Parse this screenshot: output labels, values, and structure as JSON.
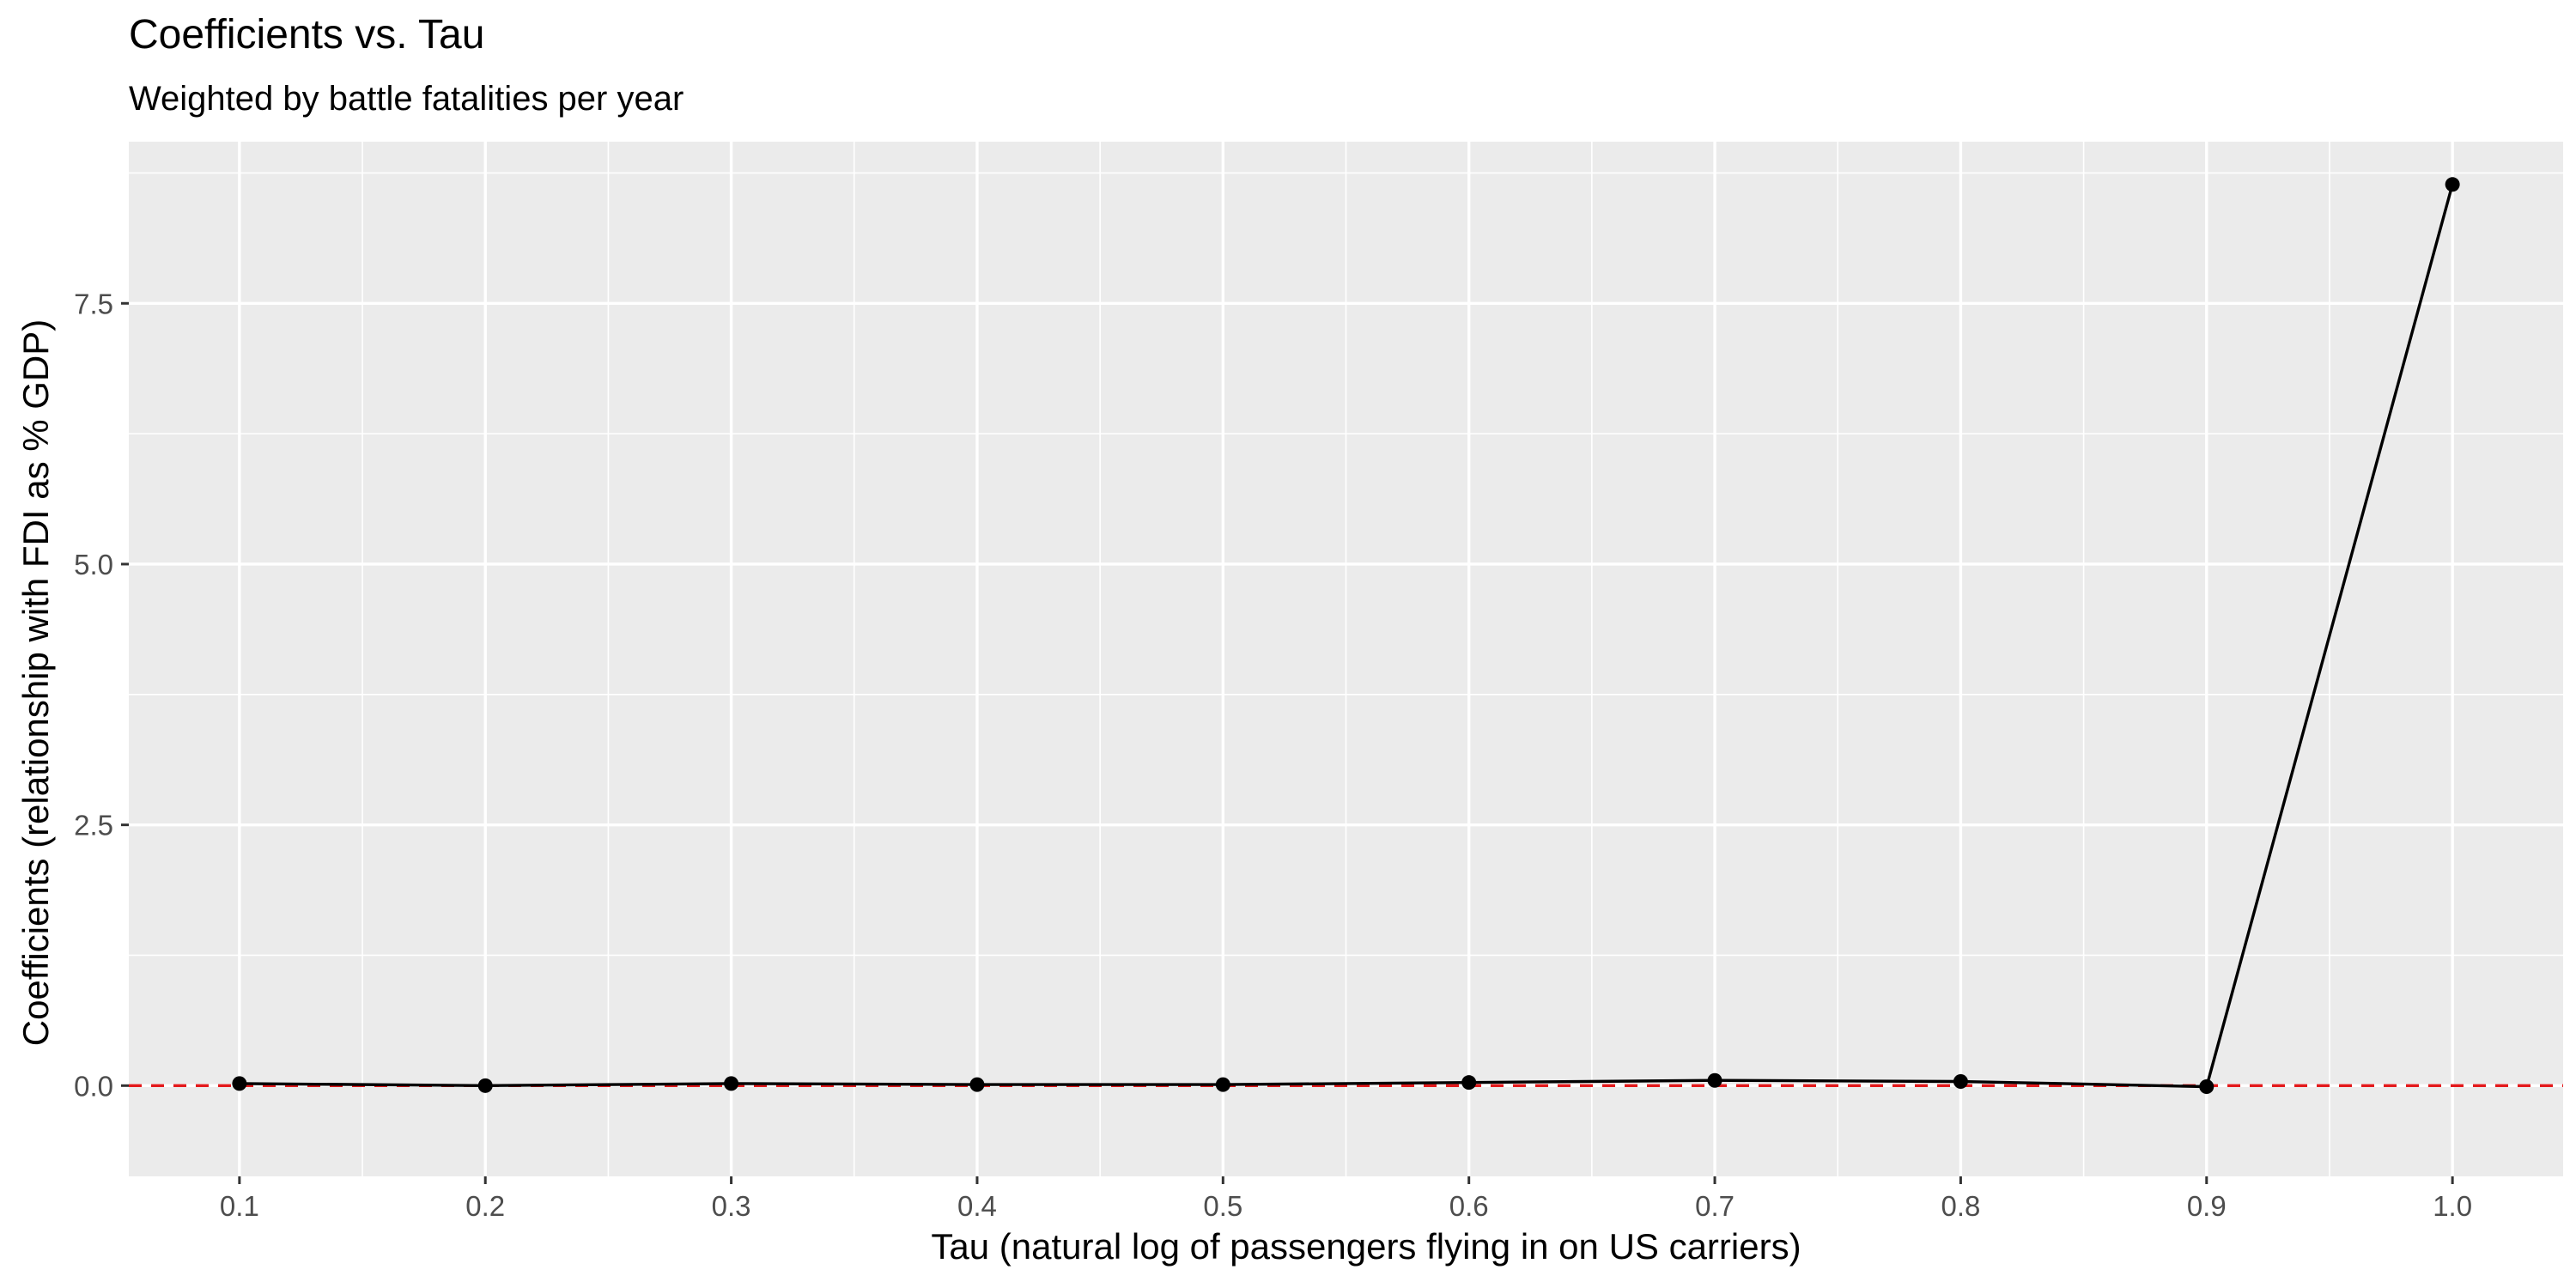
{
  "chart_data": {
    "type": "line",
    "title": "Coefficients vs. Tau",
    "subtitle": "Weighted by battle fatalities per year",
    "xlabel": "Tau (natural log of passengers flying in on US carriers)",
    "ylabel": "Coefficients (relationship with FDI as % GDP)",
    "x": [
      0.1,
      0.2,
      0.3,
      0.4,
      0.5,
      0.6,
      0.7,
      0.8,
      0.9,
      1.0
    ],
    "series": [
      {
        "values": [
          0.02,
          0.0,
          0.02,
          0.01,
          0.01,
          0.03,
          0.05,
          0.04,
          -0.01,
          8.64
        ]
      }
    ],
    "xlim": [
      0.055,
      1.045
    ],
    "ylim": [
      -0.87,
      9.05
    ],
    "xticks": [
      0.1,
      0.2,
      0.3,
      0.4,
      0.5,
      0.6,
      0.7,
      0.8,
      0.9,
      1.0
    ],
    "xtick_labels": [
      "0.1",
      "0.2",
      "0.3",
      "0.4",
      "0.5",
      "0.6",
      "0.7",
      "0.8",
      "0.9",
      "1.0"
    ],
    "yticks": [
      0.0,
      2.5,
      5.0,
      7.5
    ],
    "ytick_labels": [
      "0.0",
      "2.5",
      "5.0",
      "7.5"
    ],
    "reference_line": {
      "y": 0,
      "style": "dashed",
      "color": "#e41a1c"
    },
    "grid": true,
    "legend": "none",
    "colors": {
      "panel_background": "#ebebeb",
      "grid": "#ffffff",
      "line": "#000000",
      "points": "#000000"
    }
  }
}
